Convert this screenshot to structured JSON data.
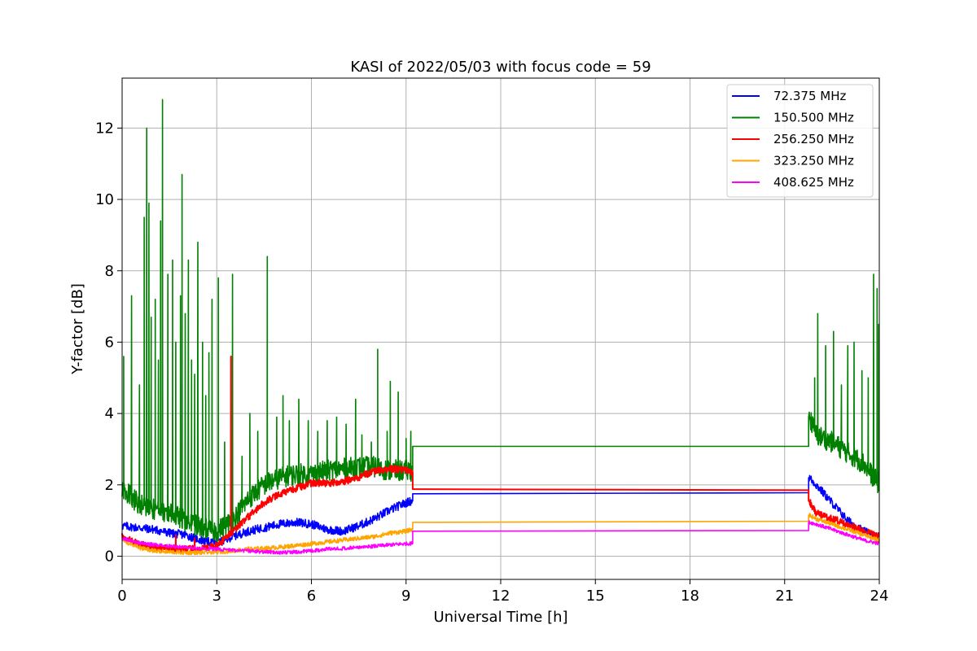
{
  "chart_data": {
    "type": "line",
    "title": "KASI of 2022/05/03 with focus code = 59",
    "xlabel": "Universal Time [h]",
    "ylabel": "Y-factor [dB]",
    "xlim": [
      0,
      24
    ],
    "ylim": [
      -0.65,
      13.4
    ],
    "xticks": [
      0,
      3,
      6,
      9,
      12,
      15,
      18,
      21,
      24
    ],
    "yticks": [
      0,
      2,
      4,
      6,
      8,
      10,
      12
    ],
    "grid": true,
    "legend_position": "top-right",
    "series": [
      {
        "name": " 72.375 MHz",
        "color": "#0000ff",
        "x": [
          0,
          0.5,
          1,
          1.5,
          2,
          2.5,
          3,
          3.5,
          4,
          4.5,
          5,
          5.5,
          6,
          6.5,
          7,
          7.5,
          8,
          8.5,
          9,
          9.2,
          9.22,
          21.75,
          21.78,
          22,
          22.5,
          23,
          23.5,
          24
        ],
        "values": [
          0.85,
          0.8,
          0.75,
          0.65,
          0.6,
          0.45,
          0.35,
          0.55,
          0.7,
          0.8,
          0.9,
          0.95,
          0.9,
          0.75,
          0.7,
          0.85,
          1.05,
          1.3,
          1.5,
          1.55,
          1.75,
          1.78,
          2.2,
          2.0,
          1.5,
          1.0,
          0.7,
          0.5
        ],
        "noise": 0.12
      },
      {
        "name": "150.500 MHz",
        "color": "#008000",
        "x": [
          0,
          0.5,
          1,
          1.5,
          2,
          2.5,
          3,
          3.5,
          4,
          4.5,
          5,
          5.5,
          6,
          6.5,
          7,
          7.5,
          8,
          8.5,
          9,
          9.2,
          9.22,
          21.75,
          21.78,
          22,
          22.5,
          23,
          23.5,
          24
        ],
        "values": [
          1.9,
          1.5,
          1.3,
          1.2,
          1.0,
          0.8,
          0.7,
          1.0,
          1.6,
          2.0,
          2.2,
          2.3,
          2.3,
          2.4,
          2.45,
          2.5,
          2.5,
          2.4,
          2.4,
          2.4,
          3.08,
          3.08,
          3.9,
          3.4,
          3.2,
          2.9,
          2.6,
          2.0
        ],
        "noise": 0.3,
        "spikes": [
          [
            0.05,
            5.6
          ],
          [
            0.3,
            7.3
          ],
          [
            0.55,
            4.8
          ],
          [
            0.7,
            9.5
          ],
          [
            0.78,
            12.0
          ],
          [
            0.85,
            9.9
          ],
          [
            0.92,
            6.7
          ],
          [
            1.05,
            7.2
          ],
          [
            1.15,
            5.5
          ],
          [
            1.22,
            9.4
          ],
          [
            1.28,
            12.8
          ],
          [
            1.45,
            7.9
          ],
          [
            1.6,
            8.3
          ],
          [
            1.7,
            6.0
          ],
          [
            1.85,
            7.3
          ],
          [
            1.9,
            10.7
          ],
          [
            2.0,
            6.8
          ],
          [
            2.1,
            8.3
          ],
          [
            2.2,
            5.5
          ],
          [
            2.3,
            5.1
          ],
          [
            2.4,
            8.8
          ],
          [
            2.55,
            6.0
          ],
          [
            2.65,
            4.5
          ],
          [
            2.75,
            5.7
          ],
          [
            2.85,
            7.2
          ],
          [
            3.05,
            7.8
          ],
          [
            3.25,
            3.2
          ],
          [
            3.5,
            7.9
          ],
          [
            3.8,
            2.8
          ],
          [
            4.05,
            4.0
          ],
          [
            4.3,
            3.5
          ],
          [
            4.6,
            8.4
          ],
          [
            4.9,
            3.9
          ],
          [
            5.1,
            4.5
          ],
          [
            5.3,
            3.8
          ],
          [
            5.6,
            4.4
          ],
          [
            5.9,
            3.8
          ],
          [
            6.2,
            3.5
          ],
          [
            6.5,
            3.8
          ],
          [
            6.8,
            3.9
          ],
          [
            7.1,
            3.7
          ],
          [
            7.4,
            4.4
          ],
          [
            7.6,
            3.4
          ],
          [
            7.9,
            3.2
          ],
          [
            8.1,
            5.8
          ],
          [
            8.4,
            3.5
          ],
          [
            8.5,
            4.9
          ],
          [
            8.75,
            4.6
          ],
          [
            9.0,
            3.3
          ],
          [
            9.15,
            3.5
          ],
          [
            21.95,
            5.0
          ],
          [
            22.05,
            6.8
          ],
          [
            22.3,
            5.9
          ],
          [
            22.55,
            6.3
          ],
          [
            22.8,
            4.8
          ],
          [
            23.0,
            5.9
          ],
          [
            23.2,
            6.0
          ],
          [
            23.45,
            5.2
          ],
          [
            23.65,
            5.0
          ],
          [
            23.82,
            7.9
          ],
          [
            23.93,
            7.5
          ],
          [
            23.98,
            6.5
          ]
        ]
      },
      {
        "name": "256.250 MHz",
        "color": "#ff0000",
        "x": [
          0,
          0.5,
          1,
          1.5,
          2,
          2.5,
          3,
          3.5,
          4,
          4.5,
          5,
          5.5,
          6,
          6.5,
          7,
          7.5,
          8,
          8.5,
          9,
          9.2,
          9.22,
          21.75,
          21.78,
          22,
          22.5,
          23,
          23.5,
          24
        ],
        "values": [
          0.55,
          0.35,
          0.25,
          0.2,
          0.2,
          0.2,
          0.3,
          0.7,
          1.1,
          1.5,
          1.75,
          1.9,
          2.05,
          2.05,
          2.1,
          2.2,
          2.4,
          2.45,
          2.4,
          2.35,
          1.88,
          1.85,
          1.55,
          1.2,
          1.05,
          0.9,
          0.7,
          0.55
        ],
        "noise": 0.1,
        "spikes": [
          [
            3.45,
            5.6
          ],
          [
            1.7,
            0.6
          ],
          [
            2.3,
            0.5
          ]
        ]
      },
      {
        "name": "323.250 MHz",
        "color": "#ffa500",
        "x": [
          0,
          0.5,
          1,
          1.5,
          2,
          2.5,
          3,
          3.5,
          4,
          4.5,
          5,
          5.5,
          6,
          6.5,
          7,
          7.5,
          8,
          8.5,
          9,
          9.2,
          9.22,
          21.75,
          21.78,
          22,
          22.5,
          23,
          23.5,
          24
        ],
        "values": [
          0.45,
          0.25,
          0.15,
          0.12,
          0.1,
          0.1,
          0.12,
          0.15,
          0.2,
          0.22,
          0.25,
          0.3,
          0.35,
          0.4,
          0.45,
          0.5,
          0.55,
          0.65,
          0.7,
          0.75,
          0.95,
          0.98,
          1.15,
          1.05,
          0.9,
          0.75,
          0.6,
          0.45
        ],
        "noise": 0.06
      },
      {
        "name": "408.625 MHz",
        "color": "#ff00ff",
        "x": [
          0,
          0.5,
          1,
          1.5,
          2,
          2.5,
          3,
          3.5,
          4,
          4.5,
          5,
          5.5,
          6,
          6.5,
          7,
          7.5,
          8,
          8.5,
          9,
          9.2,
          9.22,
          21.75,
          21.78,
          22,
          22.5,
          23,
          23.5,
          24
        ],
        "values": [
          0.5,
          0.38,
          0.32,
          0.28,
          0.25,
          0.22,
          0.2,
          0.17,
          0.15,
          0.12,
          0.1,
          0.12,
          0.15,
          0.2,
          0.22,
          0.25,
          0.28,
          0.32,
          0.35,
          0.36,
          0.7,
          0.72,
          0.95,
          0.9,
          0.75,
          0.6,
          0.45,
          0.35
        ],
        "noise": 0.05
      }
    ]
  }
}
